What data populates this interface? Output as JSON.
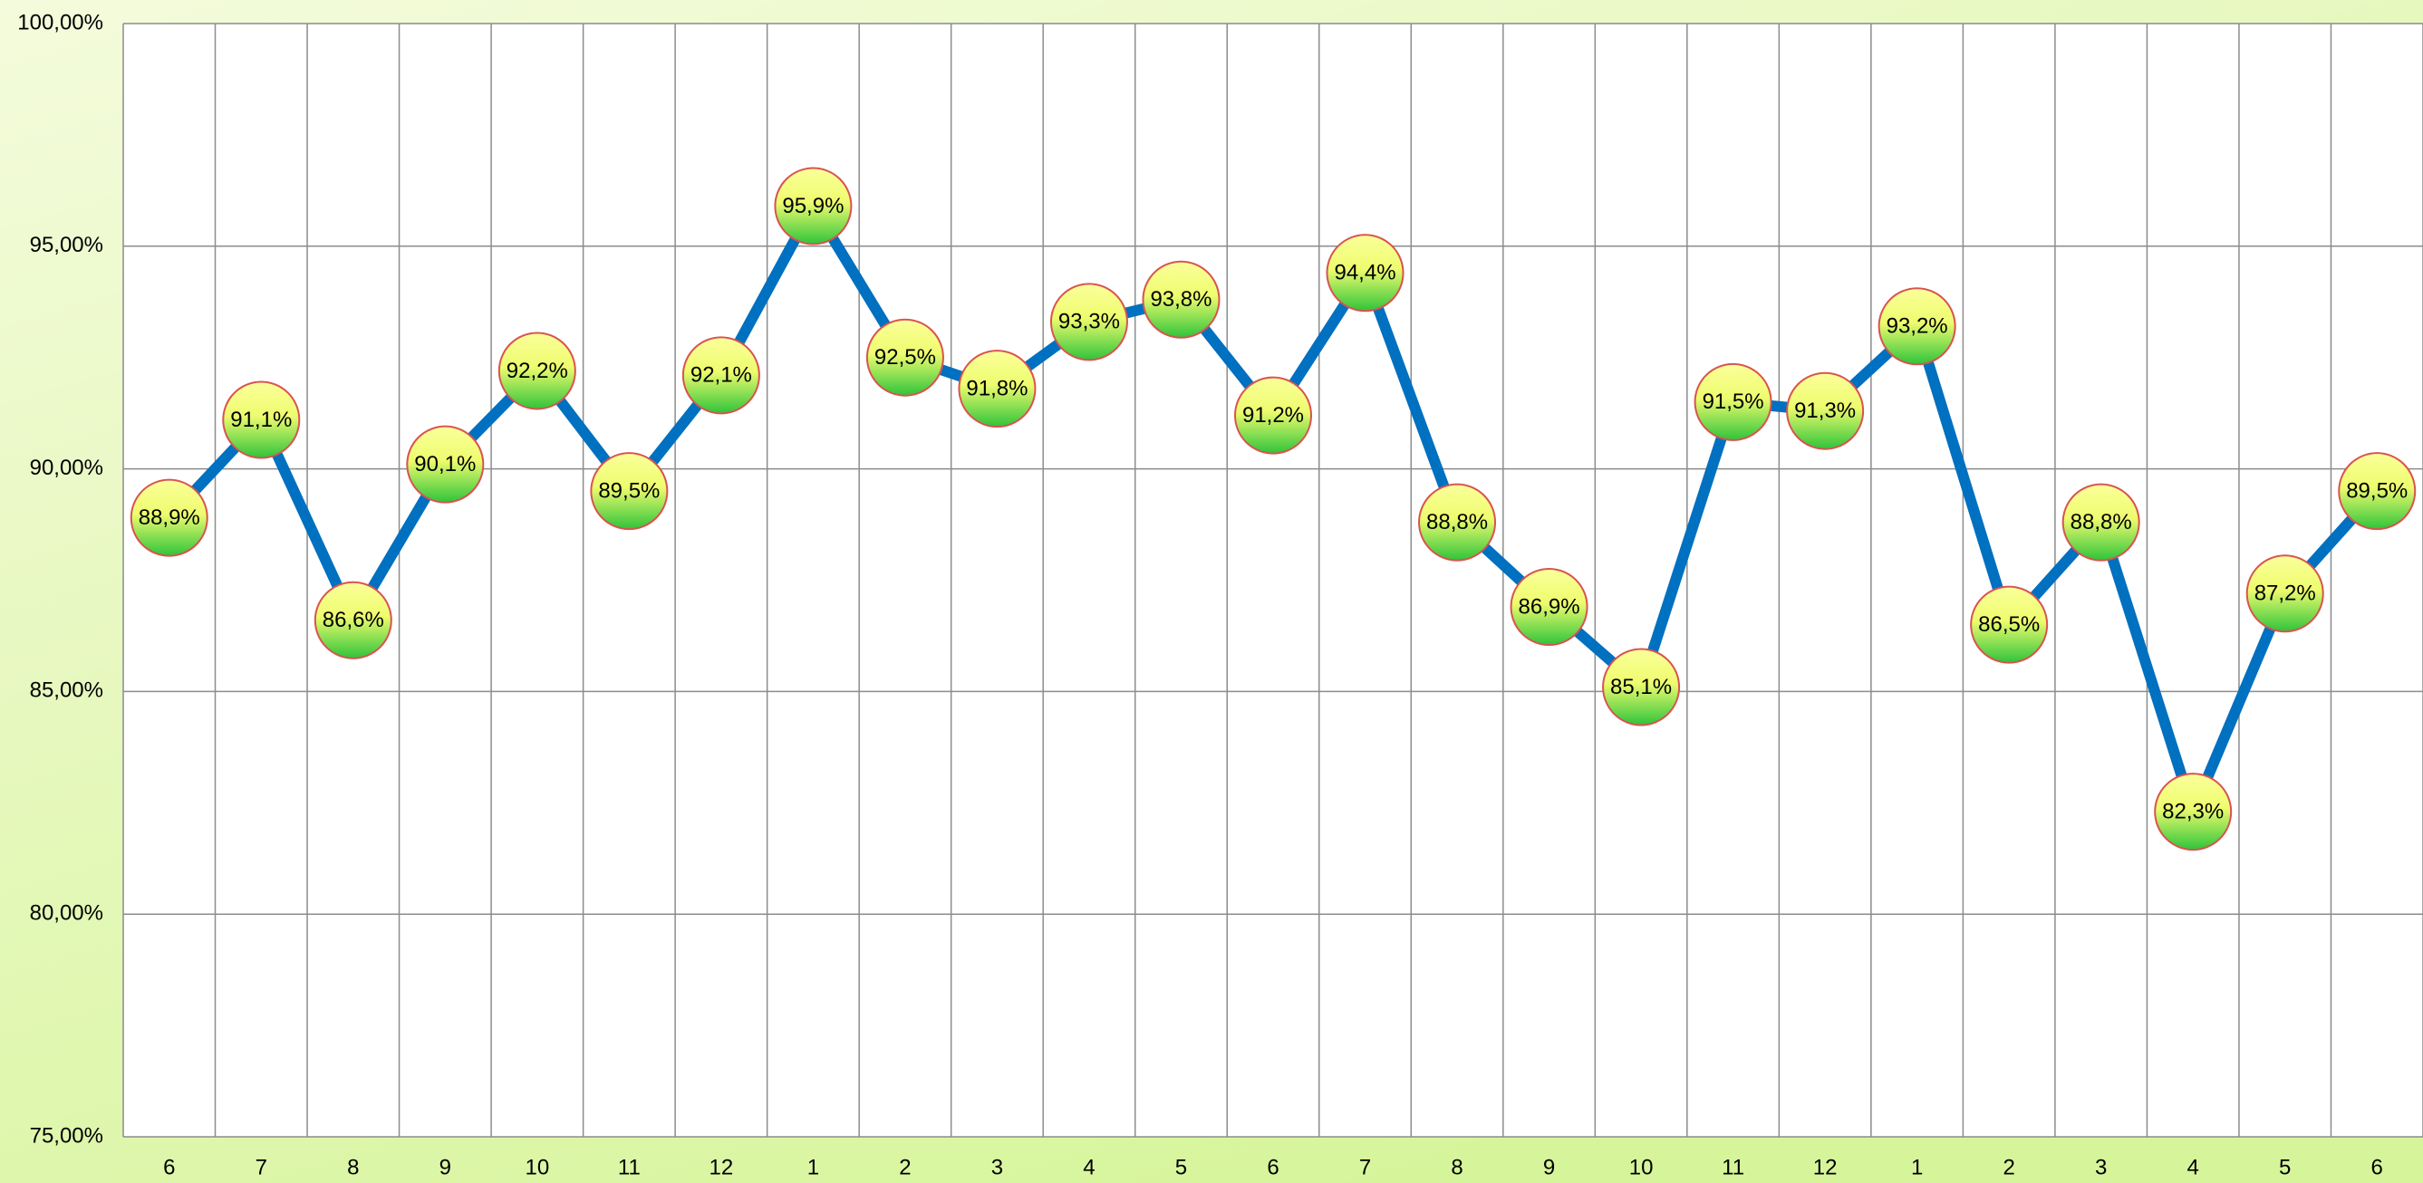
{
  "chart_data": {
    "type": "line",
    "categories": [
      "6",
      "7",
      "8",
      "9",
      "10",
      "11",
      "12",
      "1",
      "2",
      "3",
      "4",
      "5",
      "6",
      "7",
      "8",
      "9",
      "10",
      "11",
      "12",
      "1",
      "2",
      "3",
      "4",
      "5",
      "6"
    ],
    "series": [
      {
        "color": "#0070c0",
        "values": [
          88.9,
          91.1,
          86.6,
          90.1,
          92.2,
          89.5,
          92.1,
          95.9,
          92.5,
          91.8,
          93.3,
          93.8,
          91.2,
          94.4,
          88.8,
          86.9,
          85.1,
          91.5,
          91.3,
          93.2,
          86.5,
          88.8,
          82.3,
          87.2,
          89.5
        ],
        "value_labels": [
          "88,9%",
          "91,1%",
          "86,6%",
          "90,1%",
          "92,2%",
          "89,5%",
          "92,1%",
          "95,9%",
          "92,5%",
          "91,8%",
          "93,3%",
          "93,8%",
          "91,2%",
          "94,4%",
          "88,8%",
          "86,9%",
          "85,1%",
          "91,5%",
          "91,3%",
          "93,2%",
          "86,5%",
          "88,8%",
          "82,3%",
          "87,2%",
          "89,5%"
        ]
      }
    ],
    "ylim": [
      75,
      100
    ],
    "yticks": [
      {
        "value": 75,
        "label": "75,00%"
      },
      {
        "value": 80,
        "label": "80,00%"
      },
      {
        "value": 85,
        "label": "85,00%"
      },
      {
        "value": 90,
        "label": "90,00%"
      },
      {
        "value": 95,
        "label": "95,00%"
      },
      {
        "value": 100,
        "label": "100,00%"
      }
    ],
    "grid": true
  }
}
